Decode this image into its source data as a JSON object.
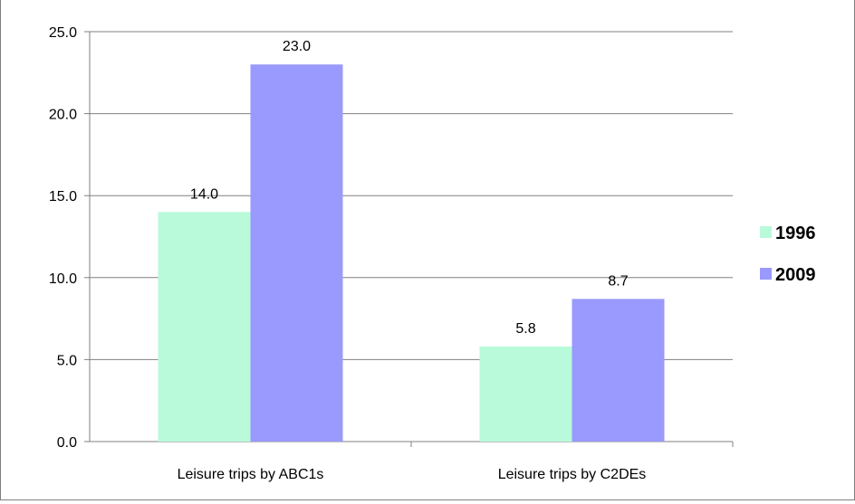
{
  "chart_data": {
    "type": "bar",
    "title": "",
    "xlabel": "",
    "ylabel": "",
    "categories": [
      "Leisure trips by ABC1s",
      "Leisure trips by C2DEs"
    ],
    "series": [
      {
        "name": "1996",
        "values": [
          14.0,
          5.8
        ],
        "color": "#b9fadb"
      },
      {
        "name": "2009",
        "values": [
          23.0,
          8.7
        ],
        "color": "#9999fe"
      }
    ],
    "ylim": [
      0,
      25
    ],
    "yticks": [
      "0.0",
      "5.0",
      "10.0",
      "15.0",
      "20.0",
      "25.0"
    ],
    "data_labels": [
      [
        "14.0",
        "5.8"
      ],
      [
        "23.0",
        "8.7"
      ]
    ],
    "grid": true,
    "legend_position": "right"
  },
  "colors": {
    "grid": "#808080",
    "axis": "#808080",
    "text": "#000000"
  }
}
